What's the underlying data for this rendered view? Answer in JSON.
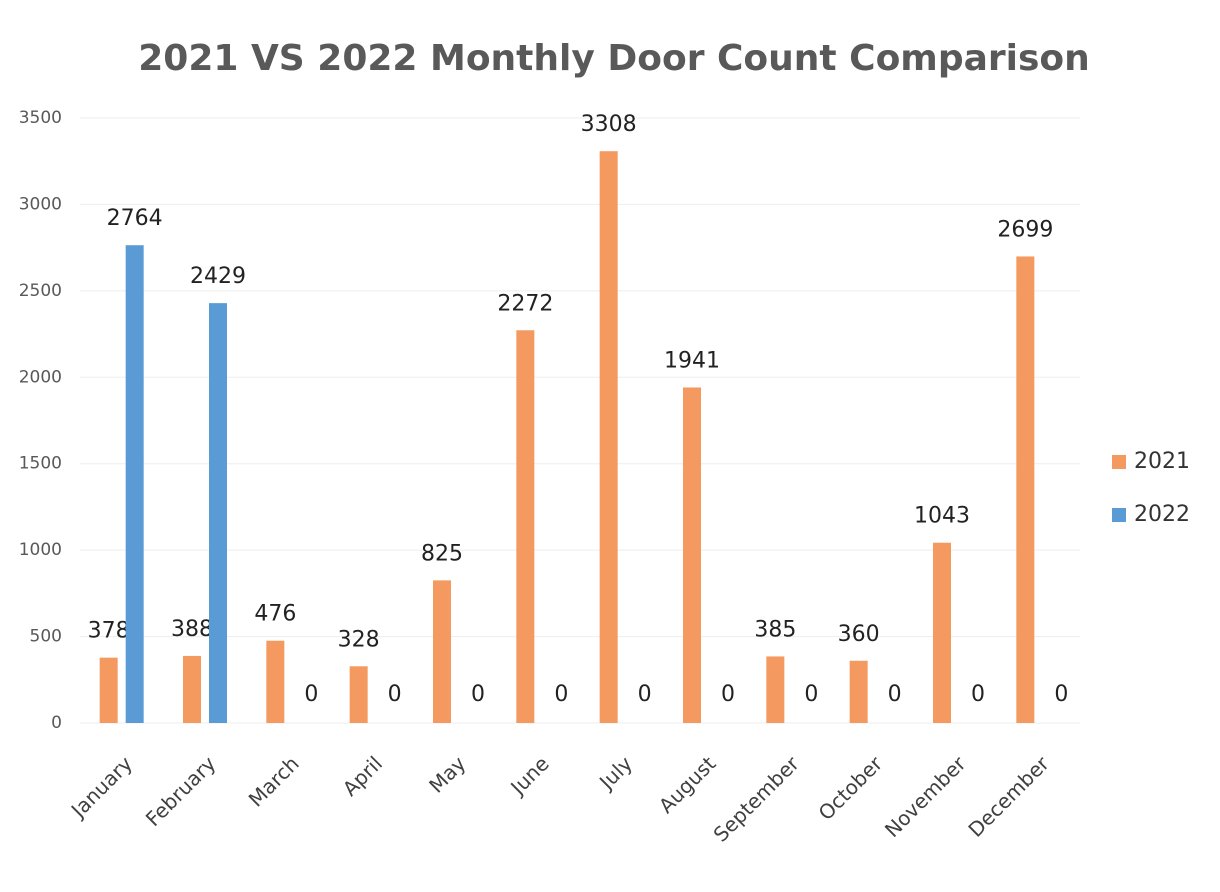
{
  "chart_data": {
    "type": "bar",
    "title": "2021 VS 2022 Monthly Door Count Comparison",
    "categories": [
      "January",
      "February",
      "March",
      "April",
      "May",
      "June",
      "July",
      "August",
      "September",
      "October",
      "November",
      "December"
    ],
    "series": [
      {
        "name": "2021",
        "color": "#f4995f",
        "values": [
          378,
          388,
          476,
          328,
          825,
          2272,
          3308,
          1941,
          385,
          360,
          1043,
          2699
        ]
      },
      {
        "name": "2022",
        "color": "#5b9bd5",
        "values": [
          2764,
          2429,
          0,
          0,
          0,
          0,
          0,
          0,
          0,
          0,
          0,
          0
        ]
      }
    ],
    "ylim": [
      0,
      3500
    ],
    "yticks": [
      0,
      500,
      1000,
      1500,
      2000,
      2500,
      3000,
      3500
    ],
    "grid": true,
    "legend": "right"
  }
}
